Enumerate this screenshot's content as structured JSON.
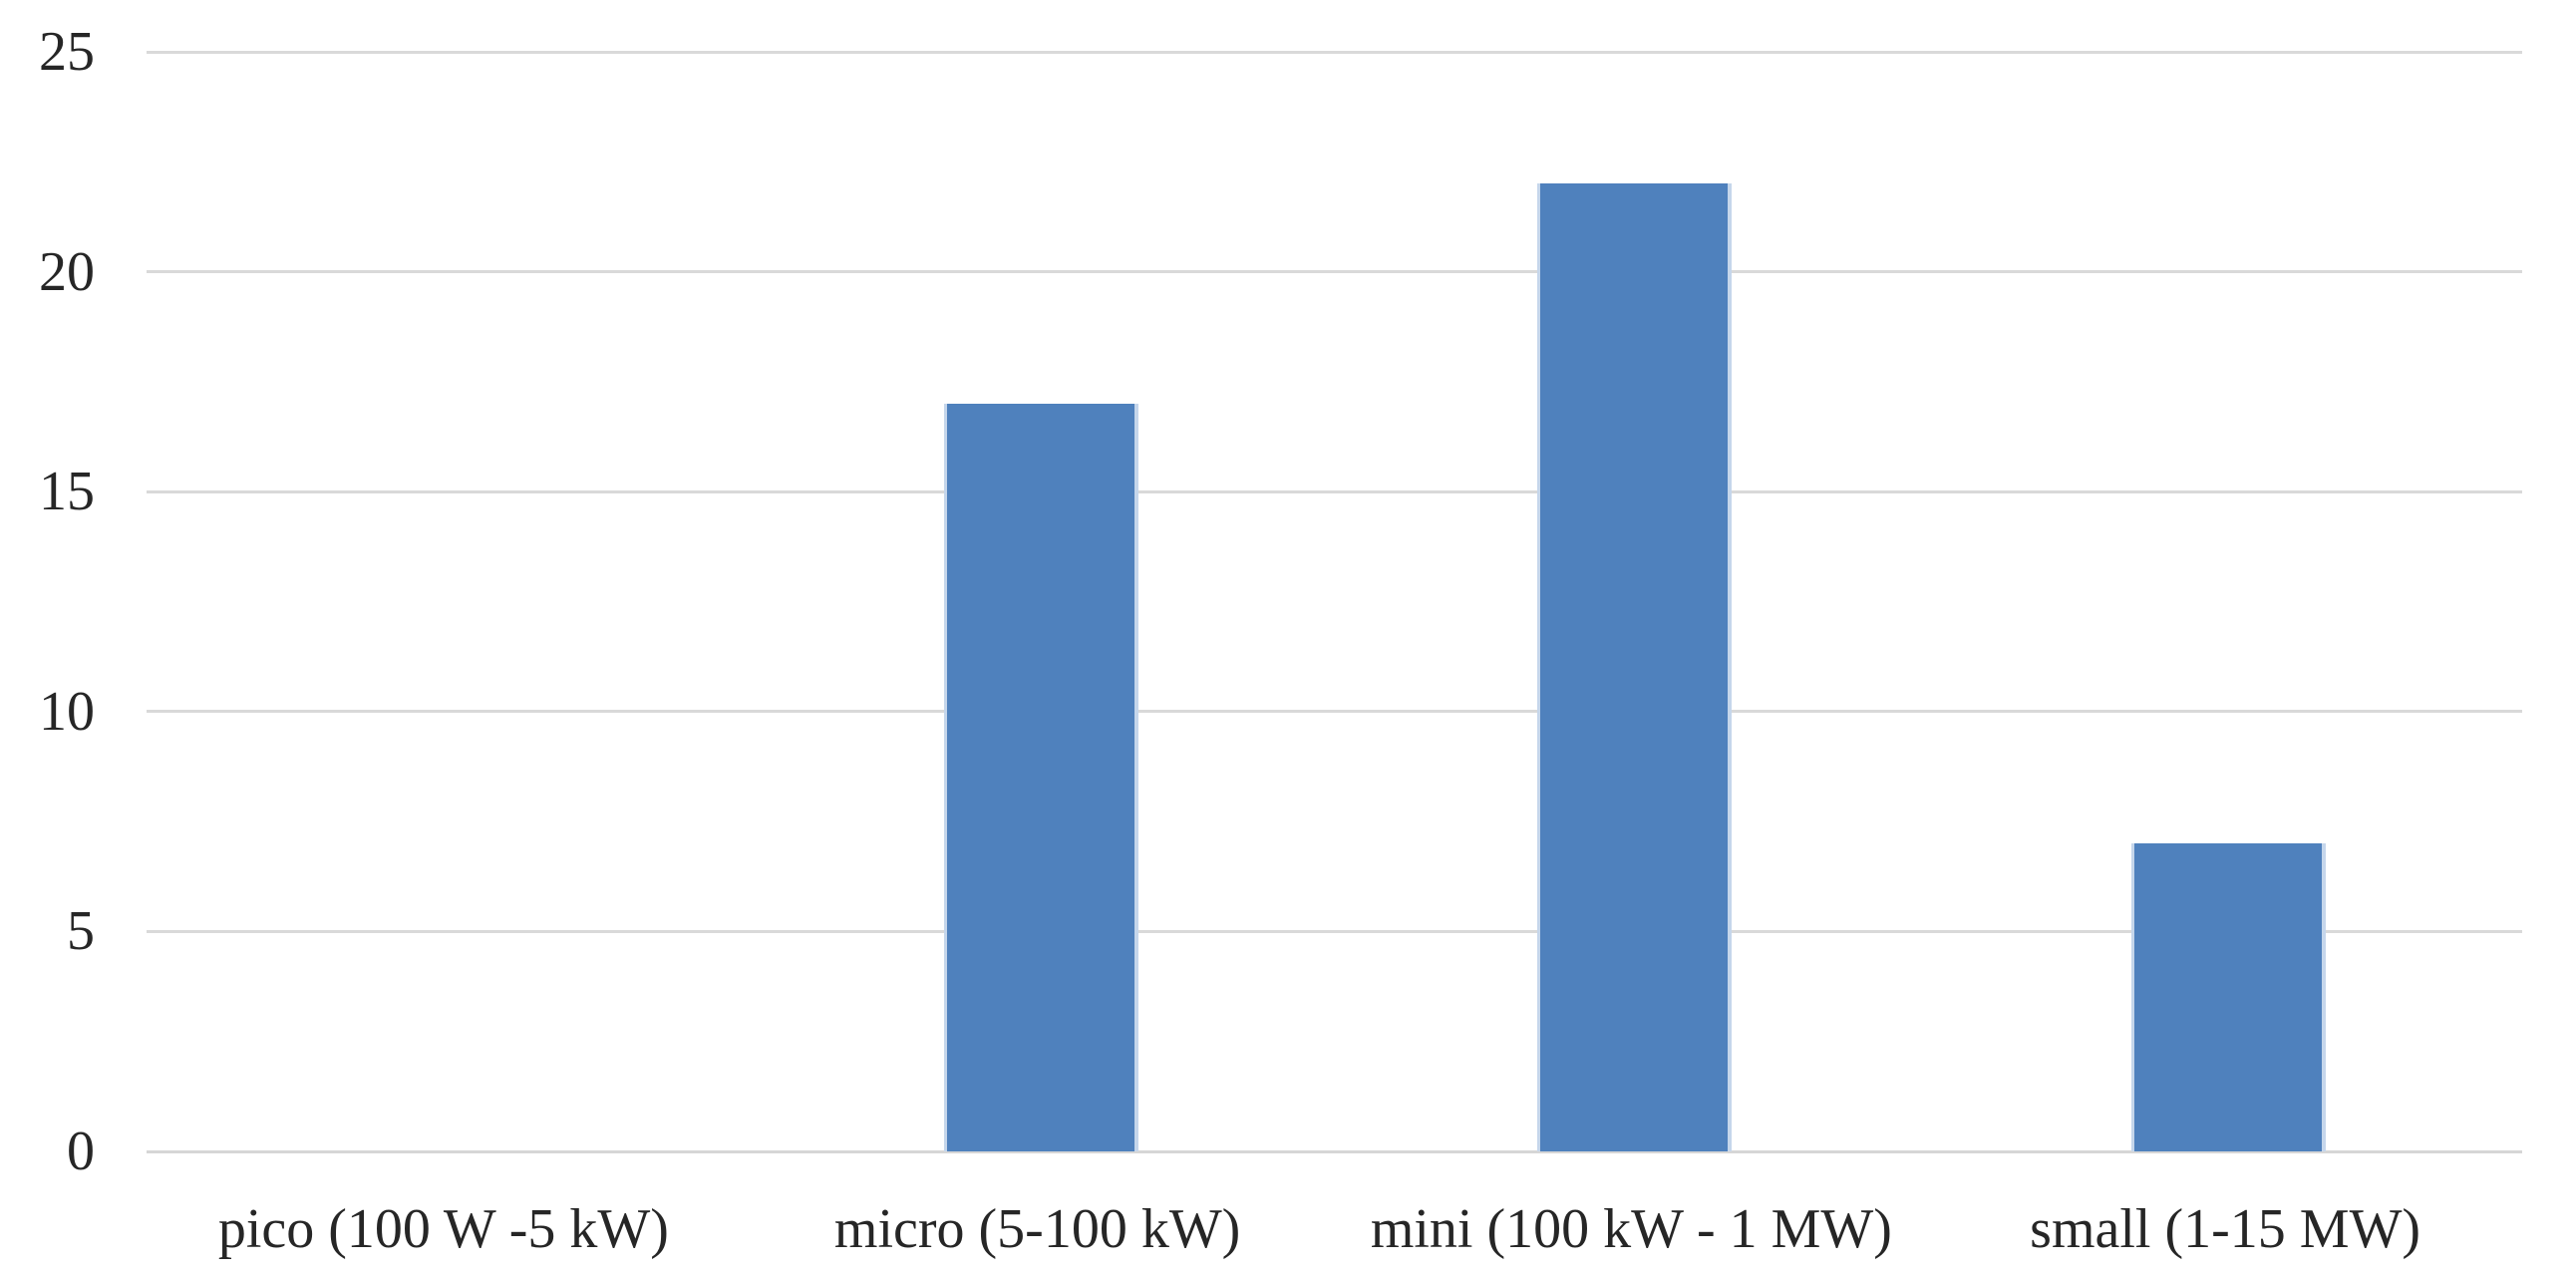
{
  "figure": {
    "background_color": "#ffffff",
    "text_color": "#262626"
  },
  "chart_data": {
    "type": "bar",
    "title": "",
    "xlabel": "",
    "ylabel": "",
    "categories": [
      "pico (100 W -5 kW)",
      "micro (5-100 kW)",
      "mini (100 kW - 1 MW)",
      "small (1-15 MW)"
    ],
    "values": [
      0,
      17,
      22,
      7
    ],
    "ylim": [
      0,
      25
    ],
    "yticks": [
      0,
      5,
      10,
      15,
      20,
      25
    ],
    "grid": true,
    "legend": false,
    "bar_color": "#4F81BD",
    "bar_edge_color": "#C5D6EB",
    "gridline_color": "#D9D9D9",
    "axis_line_color": "#D6D6D6"
  }
}
